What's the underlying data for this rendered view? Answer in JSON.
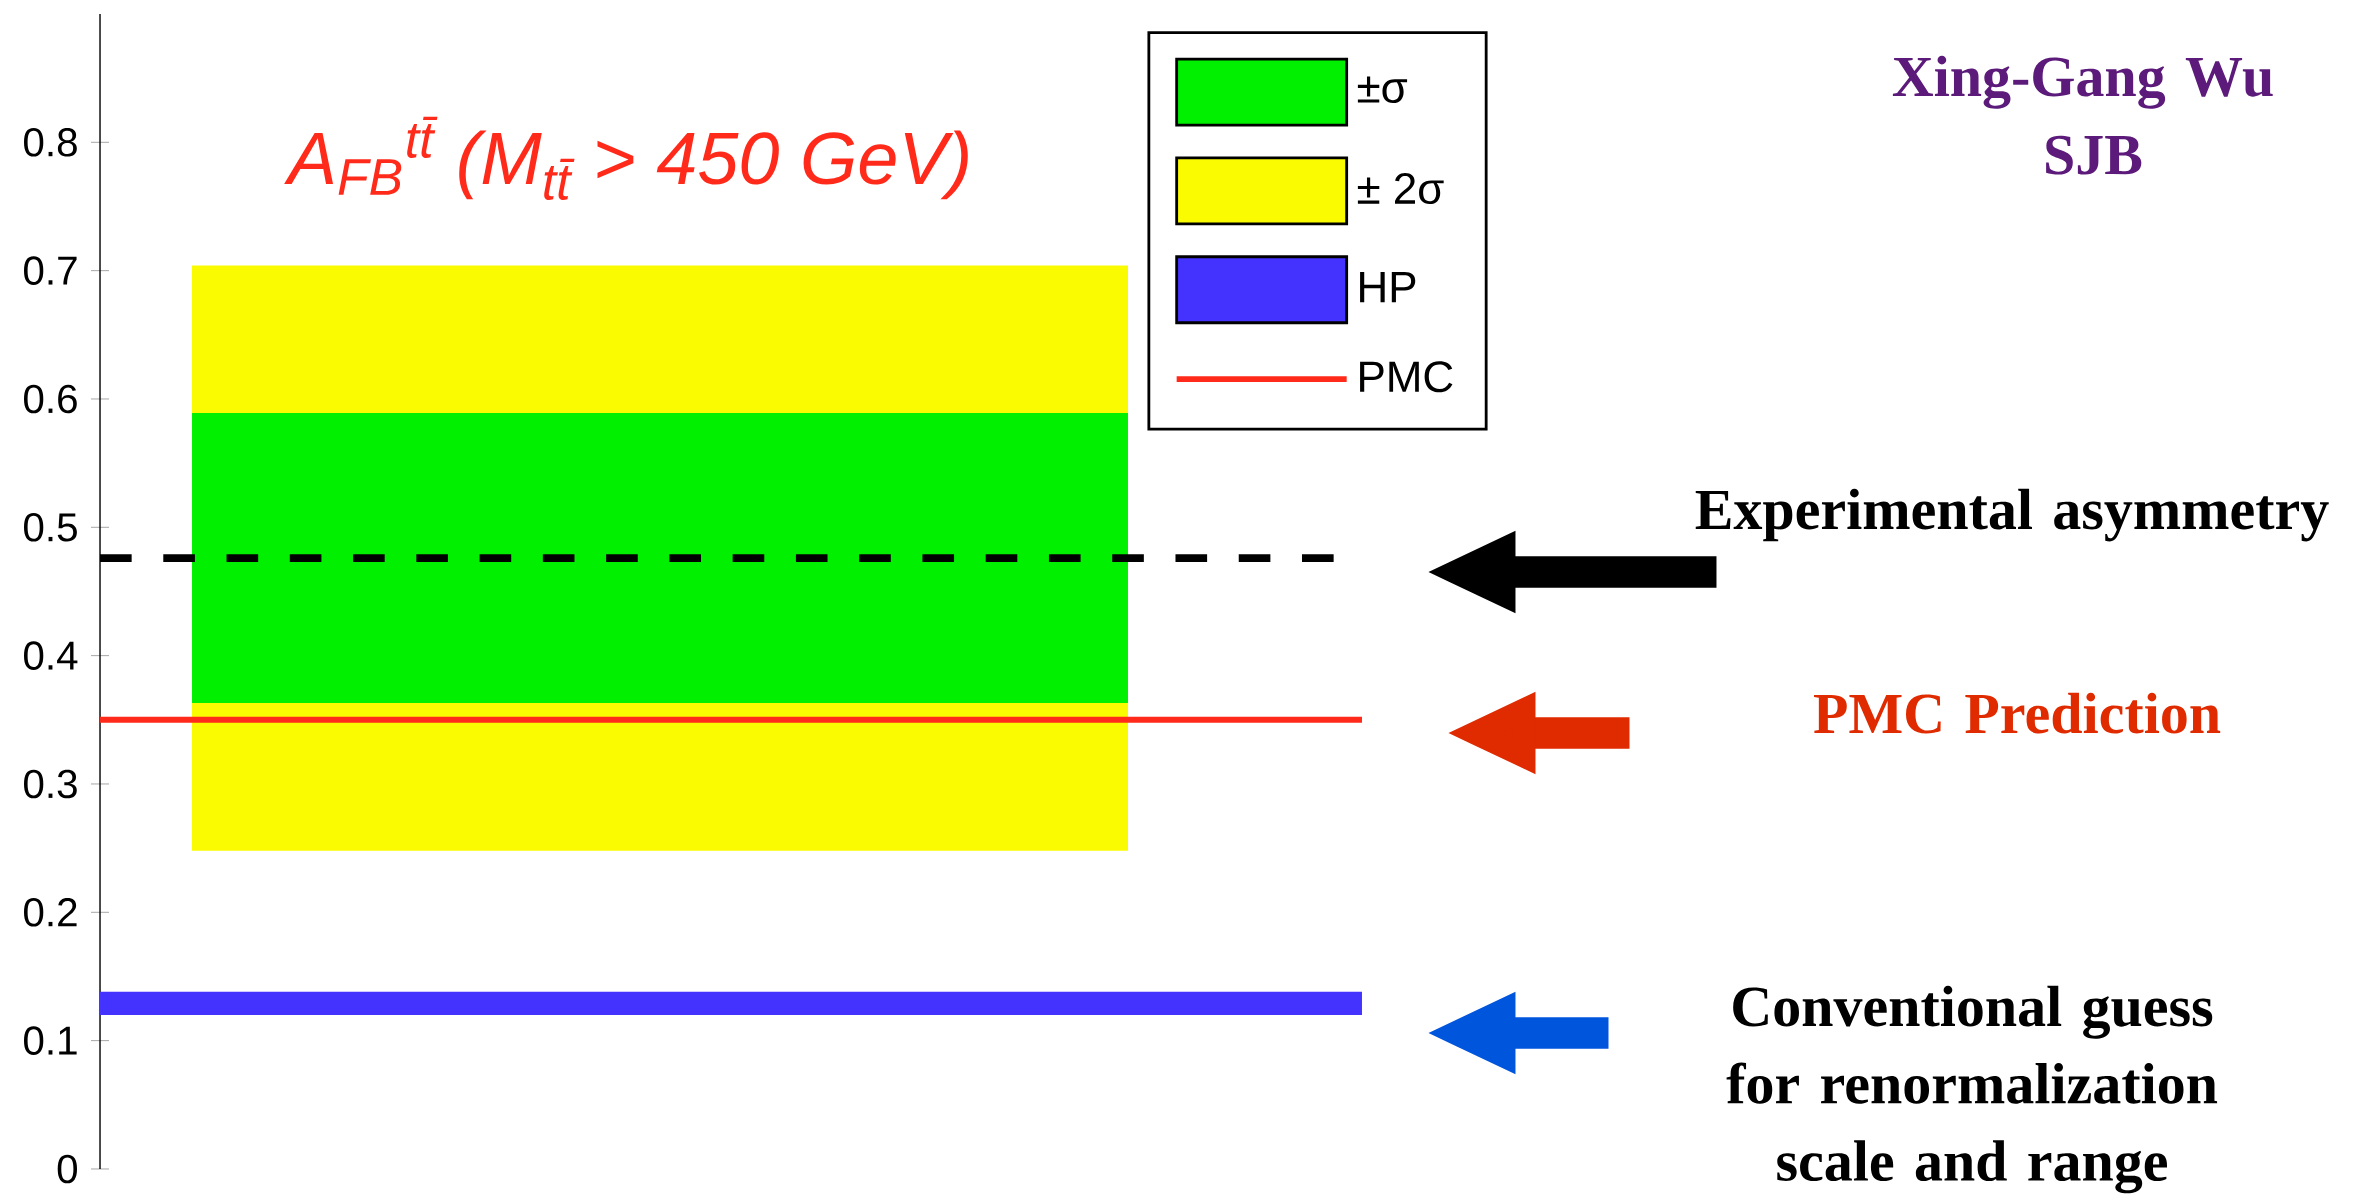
{
  "chart_data": {
    "type": "bar",
    "title": "A$_{FB}$$^{tt̄}$ (M$_{tt̄}$ > 450 GeV)",
    "categories": [
      null
    ],
    "ylim": [
      0,
      0.9
    ],
    "yticks": [
      0,
      0.1,
      0.2,
      0.3,
      0.4,
      0.5,
      0.6,
      0.7,
      0.8
    ],
    "tick_labels": "y",
    "grid": false,
    "legend": "top right",
    "series": [
      {
        "name": "±σ",
        "color": "#00f000",
        "base": [
          0.363
        ],
        "values": [
          0.226
        ]
      },
      {
        "name": "± 2σ",
        "color": "#fafa00",
        "base": [
          0.248
        ],
        "values": [
          0.456
        ]
      }
    ],
    "bands": [
      {
        "axis": "y",
        "from": 0.12,
        "to": 0.138,
        "label": "HP",
        "color": "#4433ff"
      }
    ],
    "ref_lines": [
      {
        "axis": "y",
        "value": 0.35,
        "label": "PMC",
        "color": "#ff2a1a"
      },
      {
        "axis": "y",
        "value": 0.476,
        "color": "#000000",
        "line_style": "dashed"
      }
    ],
    "annotations": [
      "Xing-Gang Wu",
      "SJB",
      "Experimental asymmetry",
      "PMC Prediction",
      "Conventional guess for renormalization scale and range"
    ]
  }
}
